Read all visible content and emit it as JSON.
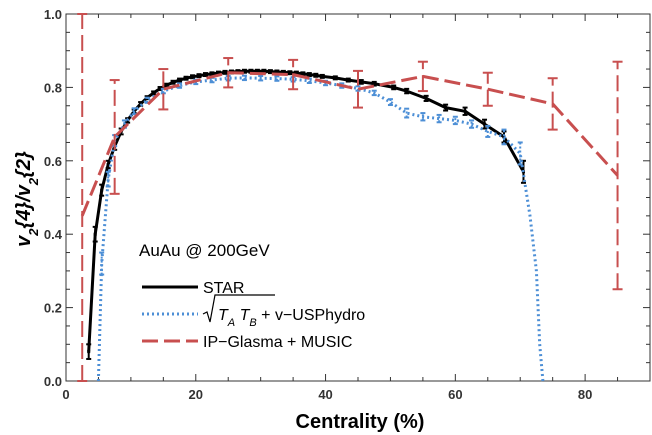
{
  "chart_data": {
    "type": "line",
    "xlabel": "Centrality (%)",
    "ylabel": "v2{4}/v2{2}",
    "xlim": [
      0,
      90
    ],
    "ylim": [
      0.0,
      1.0
    ],
    "x_ticks": [
      0,
      20,
      40,
      60,
      80
    ],
    "y_ticks": [
      "0.0",
      "0.2",
      "0.4",
      "0.6",
      "0.8",
      "1.0"
    ],
    "annotation": "AuAu @ 200GeV",
    "legend_position": "bottom-left",
    "series": [
      {
        "name": "STAR",
        "color": "#000000",
        "style": "solid",
        "x": [
          3.5,
          4.5,
          5.5,
          6.5,
          7.5,
          8.5,
          9.5,
          10.5,
          11.5,
          12.5,
          13.5,
          14.5,
          15.5,
          16.5,
          17.5,
          18.5,
          19.5,
          20.5,
          21.5,
          22.5,
          23.5,
          24.5,
          25.5,
          26.5,
          27.5,
          28.5,
          29.5,
          30.5,
          31.5,
          32.5,
          33.5,
          34.5,
          35.5,
          36.5,
          37.5,
          38.5,
          39.5,
          41.5,
          43.5,
          45.5,
          47.5,
          50.5,
          52.5,
          55.5,
          58.5,
          61.5,
          64.5,
          67.5,
          70.5
        ],
        "y": [
          0.08,
          0.4,
          0.52,
          0.59,
          0.64,
          0.68,
          0.71,
          0.735,
          0.755,
          0.772,
          0.785,
          0.797,
          0.806,
          0.814,
          0.82,
          0.825,
          0.829,
          0.832,
          0.835,
          0.837,
          0.839,
          0.841,
          0.842,
          0.843,
          0.844,
          0.844,
          0.844,
          0.844,
          0.843,
          0.842,
          0.841,
          0.84,
          0.839,
          0.837,
          0.835,
          0.833,
          0.83,
          0.826,
          0.82,
          0.815,
          0.81,
          0.8,
          0.79,
          0.77,
          0.745,
          0.735,
          0.7,
          0.665,
          0.57
        ],
        "errors": [
          0.02,
          0.02,
          0.015,
          0.01,
          0.01,
          0.008,
          0.006,
          0.005,
          0.005,
          0.004,
          0.004,
          0.004,
          0.004,
          0.004,
          0.004,
          0.004,
          0.004,
          0.004,
          0.004,
          0.004,
          0.004,
          0.004,
          0.004,
          0.004,
          0.004,
          0.004,
          0.004,
          0.004,
          0.004,
          0.004,
          0.004,
          0.004,
          0.004,
          0.004,
          0.004,
          0.004,
          0.004,
          0.004,
          0.004,
          0.005,
          0.005,
          0.005,
          0.006,
          0.007,
          0.008,
          0.01,
          0.012,
          0.015,
          0.03
        ]
      },
      {
        "name": "√(T_A T_B) + v−USPhydro",
        "color": "#4d8fd6",
        "style": "dotted",
        "x": [
          5.0,
          5.5,
          6.5,
          7.5,
          9.0,
          10.5,
          12.5,
          15.0,
          17.5,
          20.0,
          22.5,
          25.0,
          27.5,
          30.0,
          32.5,
          35.0,
          37.5,
          40.0,
          42.5,
          45.0,
          47.5,
          50.0,
          52.5,
          55.0,
          57.5,
          60.0,
          62.5,
          65.0,
          67.5,
          70.0,
          71.5,
          72.5,
          73.0,
          73.5
        ],
        "y": [
          0.0,
          0.32,
          0.55,
          0.655,
          0.7,
          0.735,
          0.765,
          0.79,
          0.805,
          0.815,
          0.82,
          0.825,
          0.826,
          0.825,
          0.824,
          0.822,
          0.818,
          0.812,
          0.805,
          0.797,
          0.785,
          0.76,
          0.73,
          0.72,
          0.715,
          0.71,
          0.7,
          0.68,
          0.665,
          0.62,
          0.45,
          0.3,
          0.1,
          0.0
        ],
        "errors": [
          0.0,
          0.03,
          0.02,
          0.015,
          0.01,
          0.008,
          0.007,
          0.006,
          0.006,
          0.006,
          0.006,
          0.006,
          0.006,
          0.006,
          0.006,
          0.006,
          0.006,
          0.006,
          0.006,
          0.006,
          0.006,
          0.008,
          0.012,
          0.01,
          0.01,
          0.01,
          0.01,
          0.015,
          0.02,
          0.03,
          0.0,
          0.0,
          0.0,
          0.0
        ]
      },
      {
        "name": "IP−Glasma + MUSIC",
        "color": "#c84f4f",
        "style": "dashed",
        "x": [
          2.5,
          7.5,
          15.0,
          25.0,
          35.0,
          45.0,
          55.0,
          65.0,
          75.0,
          85.0
        ],
        "y": [
          0.45,
          0.665,
          0.795,
          0.84,
          0.835,
          0.795,
          0.83,
          0.795,
          0.755,
          0.56
        ],
        "errors": [
          0.6,
          0.155,
          0.055,
          0.04,
          0.04,
          0.05,
          0.04,
          0.045,
          0.07,
          0.31
        ]
      }
    ]
  }
}
